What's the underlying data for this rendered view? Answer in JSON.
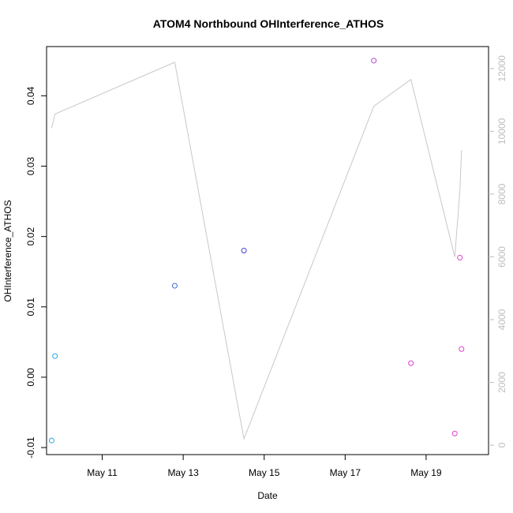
{
  "chart_data": {
    "type": "scatter",
    "title": "ATOM4 Northbound OHInterference_ATHOS",
    "xlabel": "Date",
    "ylabel": "OHInterference_ATHOS",
    "x_ticks": [
      "May 11",
      "May 13",
      "May 15",
      "May 17",
      "May 19"
    ],
    "y_ticks": [
      "-0.01",
      "0.00",
      "0.01",
      "0.02",
      "0.03",
      "0.04"
    ],
    "y_ticks_right": [
      "0",
      "2000",
      "4000",
      "6000",
      "8000",
      "10000",
      "12000"
    ],
    "x_range": [
      "2014-05-09T15:00",
      "2014-05-20T13:00"
    ],
    "ylim": [
      -0.011,
      0.047
    ],
    "ylim_right": [
      -300,
      12700
    ],
    "grid": false,
    "series": [
      {
        "kind": "points",
        "points": [
          {
            "x": "2014-05-09T18:00",
            "y": -0.009,
            "color": "#29a3e0"
          },
          {
            "x": "2014-05-09T20:00",
            "y": 0.003,
            "color": "#29a3e0"
          },
          {
            "x": "2014-05-12T19:00",
            "y": 0.013,
            "color": "#3868d8"
          },
          {
            "x": "2014-05-14T12:00",
            "y": 0.018,
            "color": "#3f3fd8"
          },
          {
            "x": "2014-05-17T17:00",
            "y": 0.045,
            "color": "#b23fd8"
          },
          {
            "x": "2014-05-18T15:00",
            "y": 0.002,
            "color": "#d83fd8"
          },
          {
            "x": "2014-05-19T17:00",
            "y": -0.008,
            "color": "#e040c8"
          },
          {
            "x": "2014-05-19T20:00",
            "y": 0.017,
            "color": "#e040c8"
          },
          {
            "x": "2014-05-19T21:00",
            "y": 0.004,
            "color": "#e040c8"
          }
        ]
      },
      {
        "kind": "line",
        "axis": "right",
        "color": "#c8c8c8",
        "points": [
          {
            "x": "2014-05-09T18:00",
            "y": 10100
          },
          {
            "x": "2014-05-09T20:00",
            "y": 10550
          },
          {
            "x": "2014-05-12T19:00",
            "y": 12200
          },
          {
            "x": "2014-05-14T12:00",
            "y": 200
          },
          {
            "x": "2014-05-17T17:00",
            "y": 10800
          },
          {
            "x": "2014-05-18T15:00",
            "y": 11650
          },
          {
            "x": "2014-05-19T17:00",
            "y": 6000
          },
          {
            "x": "2014-05-19T20:00",
            "y": 8100
          },
          {
            "x": "2014-05-19T21:00",
            "y": 9400
          }
        ]
      }
    ]
  }
}
